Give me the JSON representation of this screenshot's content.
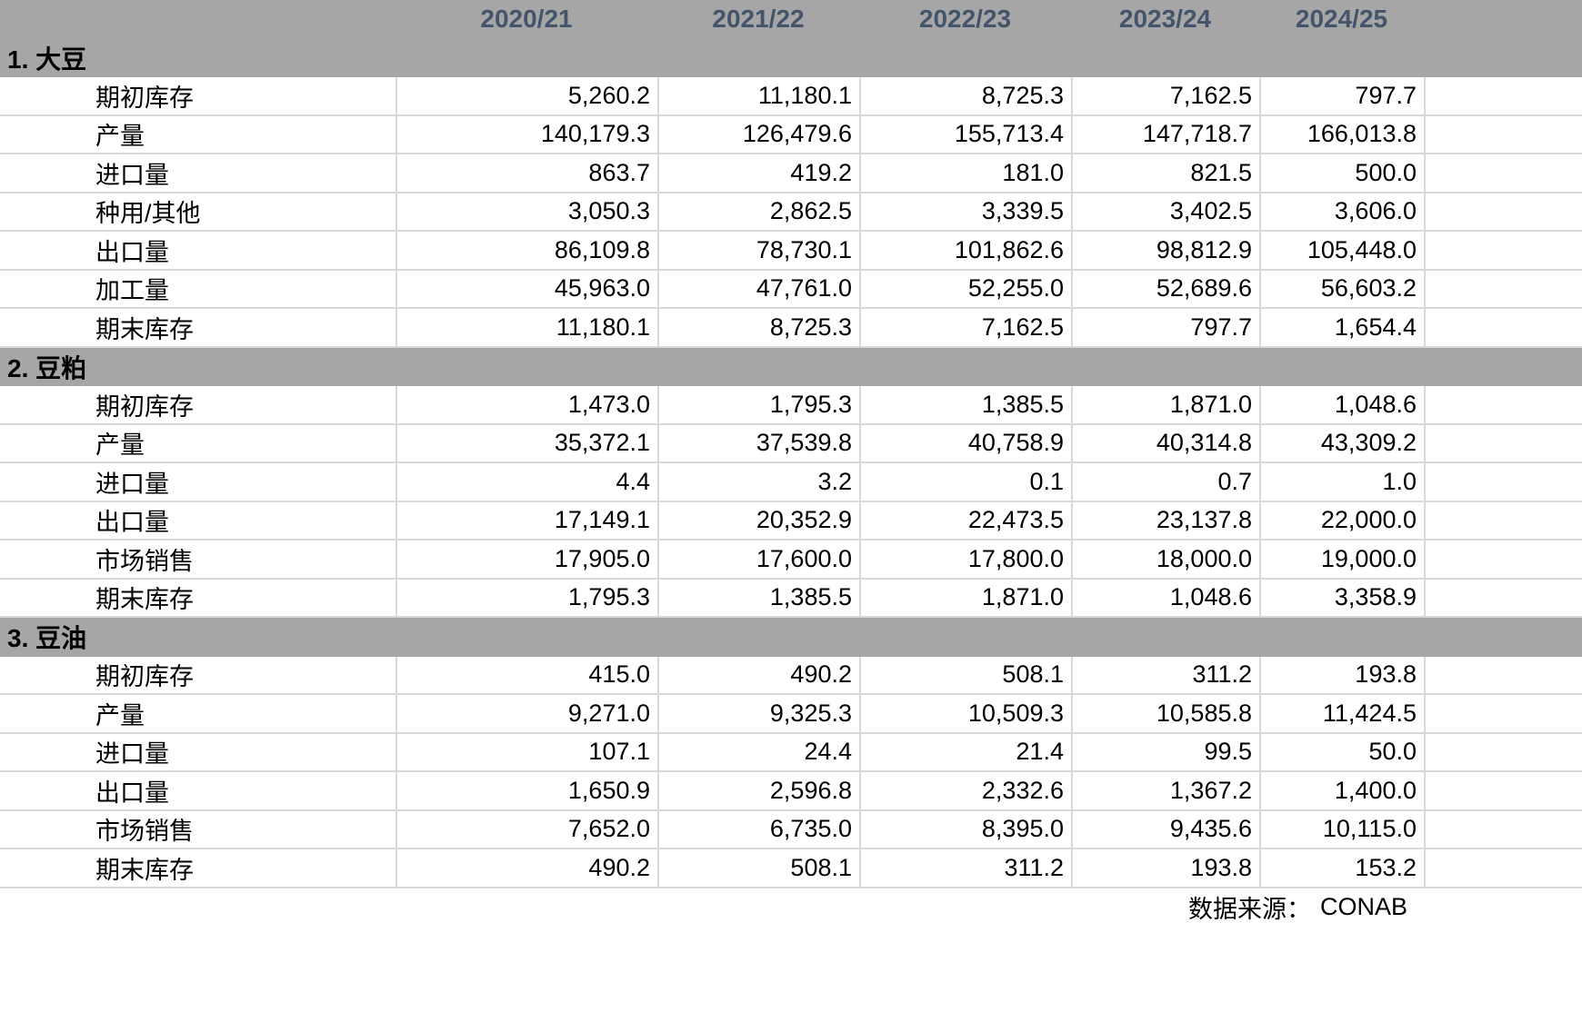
{
  "chart_data": {
    "type": "table",
    "columns": [
      "2020/21",
      "2021/22",
      "2022/23",
      "2023/24",
      "2024/25"
    ],
    "sections": [
      {
        "title": "1. 大豆",
        "rows": [
          {
            "label": "期初库存",
            "values": [
              "5,260.2",
              "11,180.1",
              "8,725.3",
              "7,162.5",
              "797.7"
            ]
          },
          {
            "label": "产量",
            "values": [
              "140,179.3",
              "126,479.6",
              "155,713.4",
              "147,718.7",
              "166,013.8"
            ]
          },
          {
            "label": "进口量",
            "values": [
              "863.7",
              "419.2",
              "181.0",
              "821.5",
              "500.0"
            ]
          },
          {
            "label": "种用/其他",
            "values": [
              "3,050.3",
              "2,862.5",
              "3,339.5",
              "3,402.5",
              "3,606.0"
            ]
          },
          {
            "label": "出口量",
            "values": [
              "86,109.8",
              "78,730.1",
              "101,862.6",
              "98,812.9",
              "105,448.0"
            ]
          },
          {
            "label": "加工量",
            "values": [
              "45,963.0",
              "47,761.0",
              "52,255.0",
              "52,689.6",
              "56,603.2"
            ]
          },
          {
            "label": "期末库存",
            "values": [
              "11,180.1",
              "8,725.3",
              "7,162.5",
              "797.7",
              "1,654.4"
            ]
          }
        ]
      },
      {
        "title": "2. 豆粕",
        "rows": [
          {
            "label": "期初库存",
            "values": [
              "1,473.0",
              "1,795.3",
              "1,385.5",
              "1,871.0",
              "1,048.6"
            ]
          },
          {
            "label": "产量",
            "values": [
              "35,372.1",
              "37,539.8",
              "40,758.9",
              "40,314.8",
              "43,309.2"
            ]
          },
          {
            "label": "进口量",
            "values": [
              "4.4",
              "3.2",
              "0.1",
              "0.7",
              "1.0"
            ]
          },
          {
            "label": "出口量",
            "values": [
              "17,149.1",
              "20,352.9",
              "22,473.5",
              "23,137.8",
              "22,000.0"
            ]
          },
          {
            "label": "市场销售",
            "values": [
              "17,905.0",
              "17,600.0",
              "17,800.0",
              "18,000.0",
              "19,000.0"
            ]
          },
          {
            "label": "期末库存",
            "values": [
              "1,795.3",
              "1,385.5",
              "1,871.0",
              "1,048.6",
              "3,358.9"
            ]
          }
        ]
      },
      {
        "title": "3. 豆油",
        "rows": [
          {
            "label": "期初库存",
            "values": [
              "415.0",
              "490.2",
              "508.1",
              "311.2",
              "193.8"
            ]
          },
          {
            "label": "产量",
            "values": [
              "9,271.0",
              "9,325.3",
              "10,509.3",
              "10,585.8",
              "11,424.5"
            ]
          },
          {
            "label": "进口量",
            "values": [
              "107.1",
              "24.4",
              "21.4",
              "99.5",
              "50.0"
            ]
          },
          {
            "label": "出口量",
            "values": [
              "1,650.9",
              "2,596.8",
              "2,332.6",
              "1,367.2",
              "1,400.0"
            ]
          },
          {
            "label": "市场销售",
            "values": [
              "7,652.0",
              "6,735.0",
              "8,395.0",
              "9,435.6",
              "10,115.0"
            ]
          },
          {
            "label": "期末库存",
            "values": [
              "490.2",
              "508.1",
              "311.2",
              "193.8",
              "153.2"
            ]
          }
        ]
      }
    ]
  },
  "footer": {
    "source_prefix": "数据来源：",
    "source_name": "CONAB"
  },
  "colors": {
    "band": "#a6a6a6",
    "header_text": "#44546a",
    "grid_line": "#d9d9d9"
  }
}
